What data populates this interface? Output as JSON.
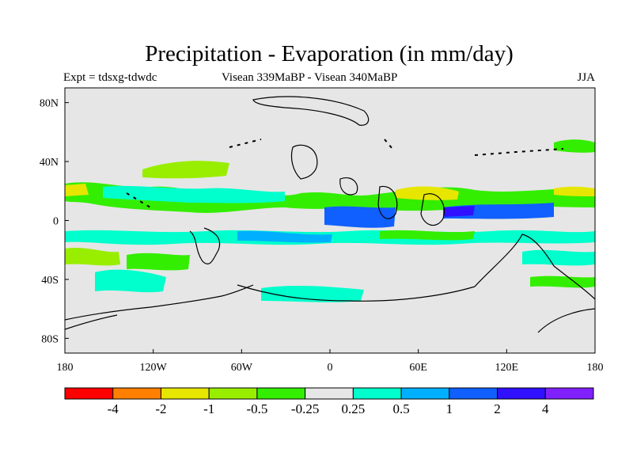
{
  "title": "Precipitation - Evaporation (in mm/day)",
  "left_label": "Expt = tdsxg-tdwdc",
  "center_label": "Visean 339MaBP - Visean   340MaBP",
  "right_label": "JJA",
  "x_ticks": [
    "180",
    "120W",
    "60W",
    "0",
    "60E",
    "120E",
    "180"
  ],
  "y_ticks": [
    "80N",
    "40N",
    "0",
    "40S",
    "80S"
  ],
  "colorbar": {
    "colors": [
      "#ff0000",
      "#ff8000",
      "#e6e600",
      "#99ee00",
      "#33ee00",
      "#e6e6e6",
      "#00ffcc",
      "#00b0ff",
      "#1060ff",
      "#3010ff",
      "#8020ff"
    ],
    "labels": [
      "-4",
      "-2",
      "-1",
      "-0.5",
      "-0.25",
      "0.25",
      "0.5",
      "1",
      "2",
      "4"
    ]
  },
  "colors": {
    "background_field": "#e6e6e6",
    "coast": "#000000"
  }
}
